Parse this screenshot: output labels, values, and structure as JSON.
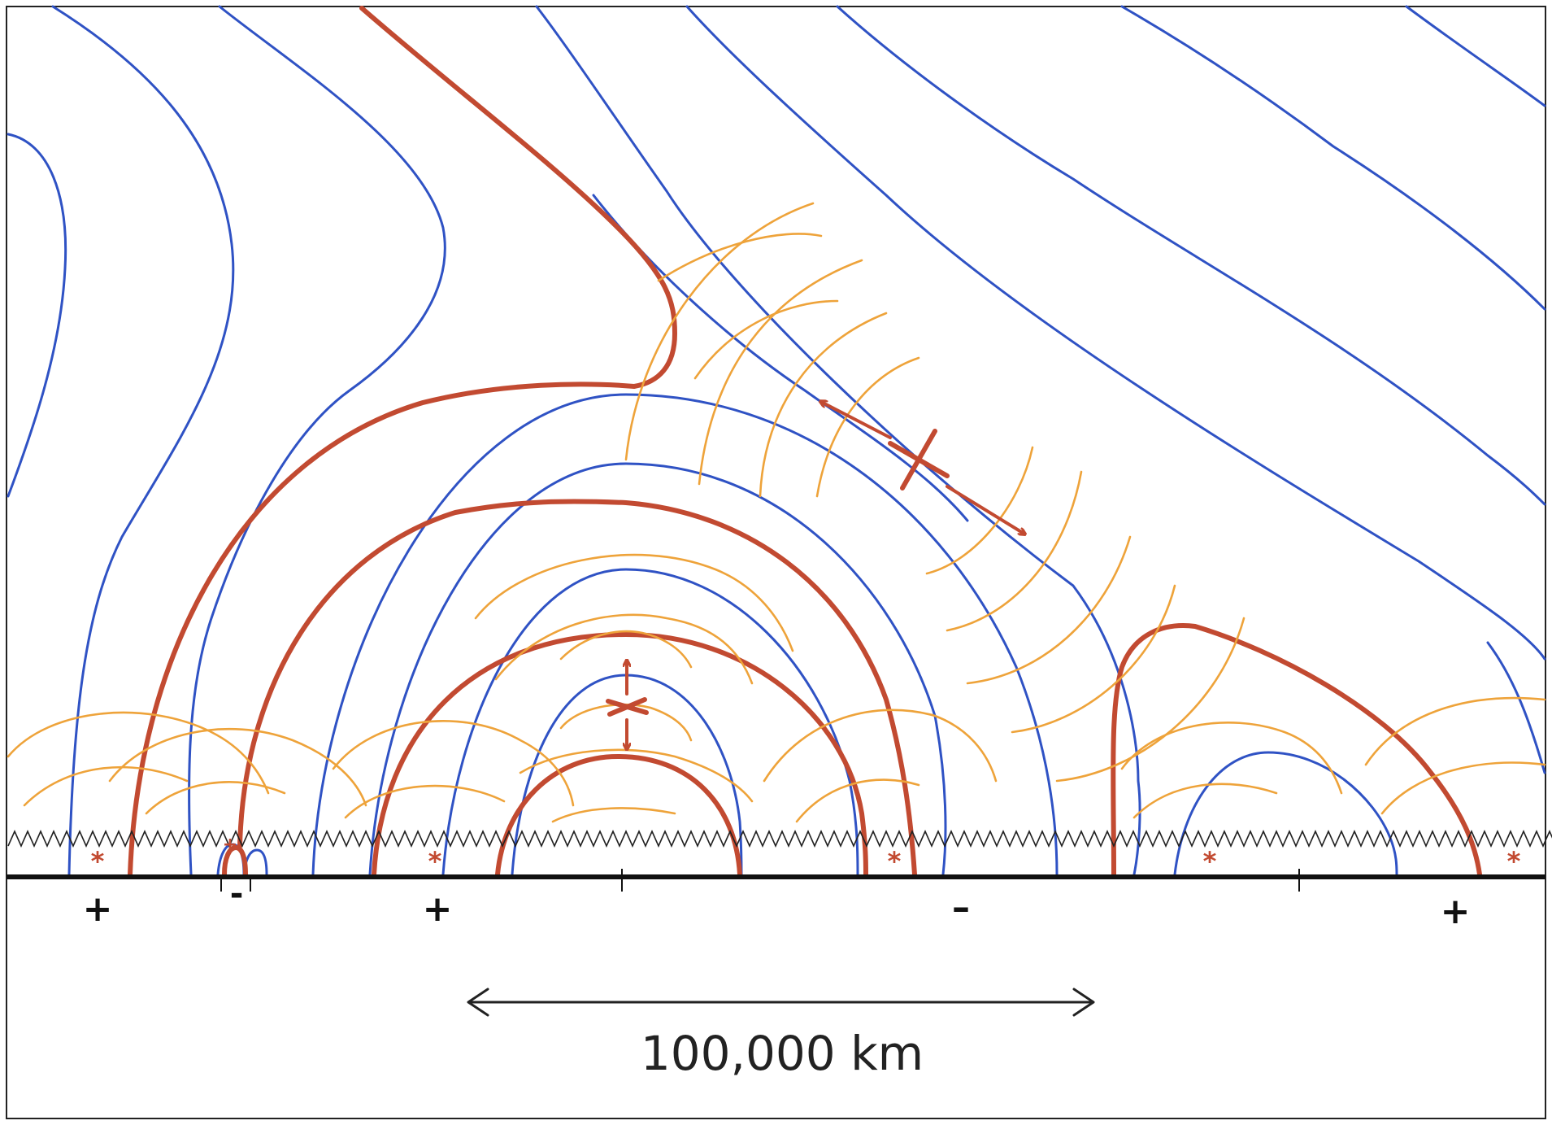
{
  "diagram": {
    "colors": {
      "field_lines": "#2f52c4",
      "separatrices": "#c24a31",
      "wave_fronts": "#eea33a",
      "surface": "#111111"
    },
    "polarity_labels": [
      {
        "id": "plus-1",
        "text": "+"
      },
      {
        "id": "minus-small",
        "text": "-"
      },
      {
        "id": "plus-2",
        "text": "+"
      },
      {
        "id": "minus-large",
        "text": "–"
      },
      {
        "id": "plus-3",
        "text": "+"
      }
    ],
    "small_polarity_marker": "+",
    "star_symbol": "*",
    "scale": {
      "length_value": 100000,
      "label": "100,000 km"
    }
  }
}
